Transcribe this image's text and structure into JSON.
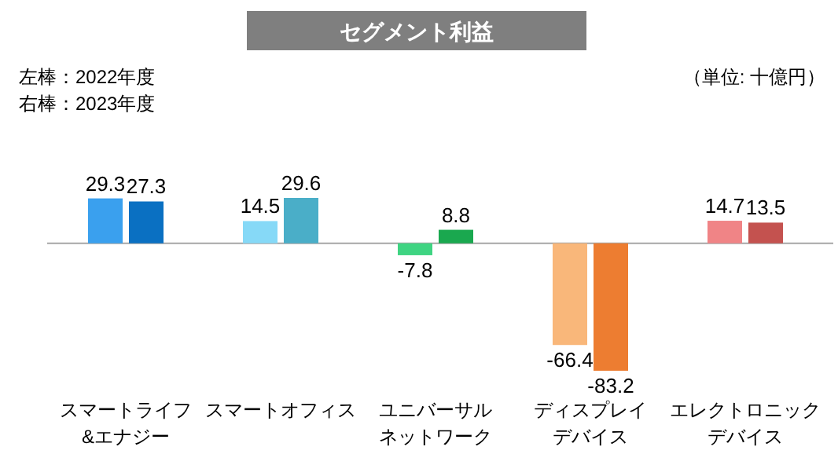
{
  "chart_data": {
    "type": "bar",
    "title": "セグメント利益",
    "annotations": [
      "左棒：2022年度",
      "右棒：2023年度",
      "（単位: 十億円）"
    ],
    "categories": [
      "スマートライフ\n&エナジー",
      "スマートオフィス",
      "ユニバーサルネットワーク",
      "ディスプレイデバイス",
      "エレクトロニックデバイス"
    ],
    "series": [
      {
        "values": [
          29.3,
          14.5,
          -7.8,
          -66.4,
          14.7
        ],
        "colors": [
          "#3aa0ee",
          "#86d9f7",
          "#3fd482",
          "#f9b77a",
          "#f08486"
        ]
      },
      {
        "values": [
          27.3,
          29.6,
          8.8,
          -83.2,
          13.5
        ],
        "colors": [
          "#0a70c2",
          "#4aaec8",
          "#1aa84f",
          "#ed7d31",
          "#c4524f"
        ]
      }
    ],
    "data_labels": true
  }
}
